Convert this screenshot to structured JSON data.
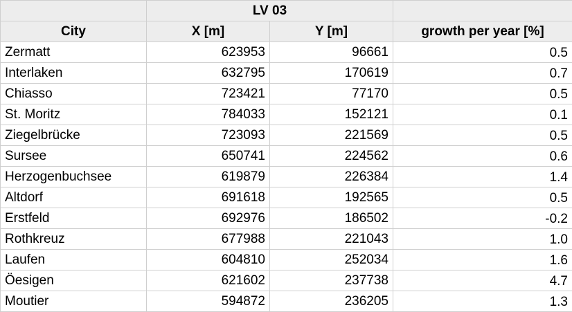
{
  "table": {
    "group_header": "LV 03",
    "columns": [
      "City",
      "X [m]",
      "Y [m]",
      "growth per year [%]"
    ],
    "rows": [
      [
        "Zermatt",
        "623953",
        "96661",
        "0.5"
      ],
      [
        "Interlaken",
        "632795",
        "170619",
        "0.7"
      ],
      [
        "Chiasso",
        "723421",
        "77170",
        "0.5"
      ],
      [
        "St. Moritz",
        "784033",
        "152121",
        "0.1"
      ],
      [
        "Ziegelbrücke",
        "723093",
        "221569",
        "0.5"
      ],
      [
        "Sursee",
        "650741",
        "224562",
        "0.6"
      ],
      [
        "Herzogenbuchsee",
        "619879",
        "226384",
        "1.4"
      ],
      [
        "Altdorf",
        "691618",
        "192565",
        "0.5"
      ],
      [
        "Erstfeld",
        "692976",
        "186502",
        "-0.2"
      ],
      [
        "Rothkreuz",
        "677988",
        "221043",
        "1.0"
      ],
      [
        "Laufen",
        "604810",
        "252034",
        "1.6"
      ],
      [
        "Öesigen",
        "621602",
        "237738",
        "4.7"
      ],
      [
        "Moutier",
        "594872",
        "236205",
        "1.3"
      ]
    ]
  }
}
